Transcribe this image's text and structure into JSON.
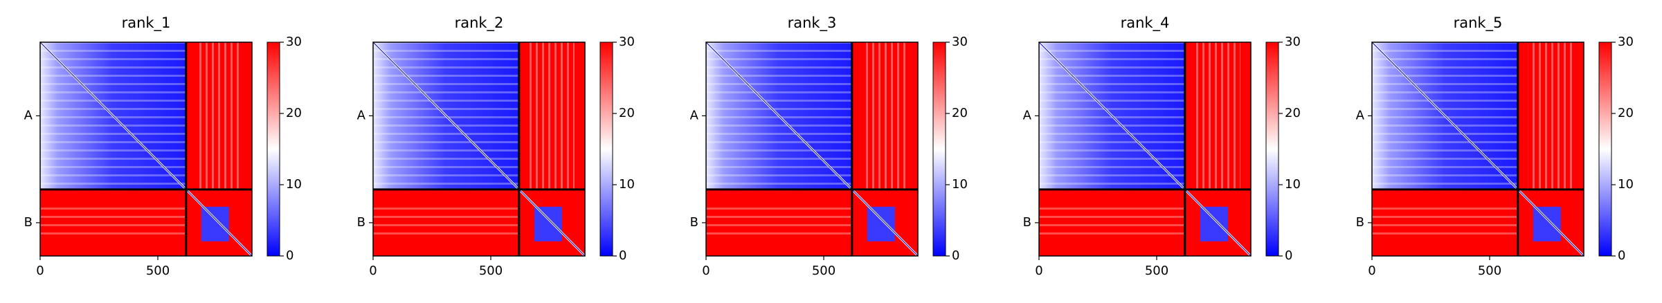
{
  "chart_data": [
    {
      "type": "heatmap",
      "title": "rank_1",
      "xlim": [
        0,
        900
      ],
      "xticks": [
        0,
        500
      ],
      "ylim": [
        900,
        0
      ],
      "yticks": [
        {
          "value": 310,
          "label": "A"
        },
        {
          "value": 760,
          "label": "B"
        }
      ],
      "chain_breaks": [
        620
      ],
      "colorbar": {
        "clim": [
          0,
          30
        ],
        "ticks": [
          0,
          10,
          20,
          30
        ],
        "colors": [
          "#0000ff",
          "#ffffff",
          "#ff0000"
        ]
      }
    },
    {
      "type": "heatmap",
      "title": "rank_2",
      "xlim": [
        0,
        900
      ],
      "xticks": [
        0,
        500
      ],
      "ylim": [
        900,
        0
      ],
      "yticks": [
        {
          "value": 310,
          "label": "A"
        },
        {
          "value": 760,
          "label": "B"
        }
      ],
      "chain_breaks": [
        620
      ],
      "colorbar": {
        "clim": [
          0,
          30
        ],
        "ticks": [
          0,
          10,
          20,
          30
        ],
        "colors": [
          "#0000ff",
          "#ffffff",
          "#ff0000"
        ]
      }
    },
    {
      "type": "heatmap",
      "title": "rank_3",
      "xlim": [
        0,
        900
      ],
      "xticks": [
        0,
        500
      ],
      "ylim": [
        900,
        0
      ],
      "yticks": [
        {
          "value": 310,
          "label": "A"
        },
        {
          "value": 760,
          "label": "B"
        }
      ],
      "chain_breaks": [
        620
      ],
      "colorbar": {
        "clim": [
          0,
          30
        ],
        "ticks": [
          0,
          10,
          20,
          30
        ],
        "colors": [
          "#0000ff",
          "#ffffff",
          "#ff0000"
        ]
      }
    },
    {
      "type": "heatmap",
      "title": "rank_4",
      "xlim": [
        0,
        900
      ],
      "xticks": [
        0,
        500
      ],
      "ylim": [
        900,
        0
      ],
      "yticks": [
        {
          "value": 310,
          "label": "A"
        },
        {
          "value": 760,
          "label": "B"
        }
      ],
      "chain_breaks": [
        620
      ],
      "colorbar": {
        "clim": [
          0,
          30
        ],
        "ticks": [
          0,
          10,
          20,
          30
        ],
        "colors": [
          "#0000ff",
          "#ffffff",
          "#ff0000"
        ]
      }
    },
    {
      "type": "heatmap",
      "title": "rank_5",
      "xlim": [
        0,
        900
      ],
      "xticks": [
        0,
        500
      ],
      "ylim": [
        900,
        0
      ],
      "yticks": [
        {
          "value": 310,
          "label": "A"
        },
        {
          "value": 760,
          "label": "B"
        }
      ],
      "chain_breaks": [
        620
      ],
      "colorbar": {
        "clim": [
          0,
          30
        ],
        "ticks": [
          0,
          10,
          20,
          30
        ],
        "colors": [
          "#0000ff",
          "#ffffff",
          "#ff0000"
        ]
      }
    }
  ]
}
